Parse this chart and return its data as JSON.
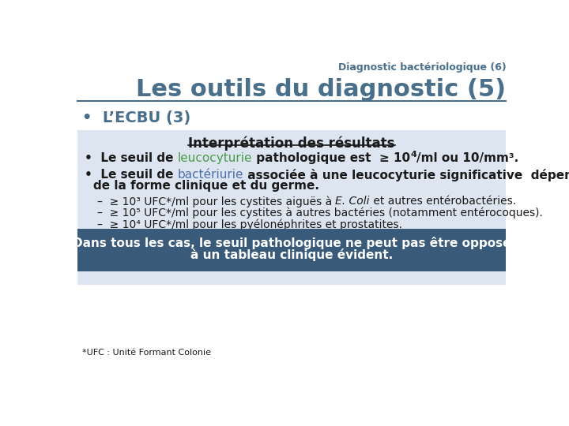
{
  "title_small": "Diagnostic bactériologique (6)",
  "title_large": "Les outils du diagnostic (5)",
  "subtitle": "•  L’ECBU (3)",
  "box_title": "Interprétation des résultats",
  "footer_line1": "Dans tous les cas, le seuil pathologique ne peut pas être opposé",
  "footer_line2": "à un tableau clinique évident.",
  "footnote": "*UFC : Unité Formant Colonie",
  "color_header": "#4a6f8a",
  "color_leucocyturie": "#4a9a4a",
  "color_bacteriurie": "#4a6fb0",
  "color_light_box": "#dde6f0",
  "color_dark_box": "#3a5a7a",
  "color_white": "#ffffff",
  "color_black": "#1a1a1a",
  "color_line": "#4a6f8a",
  "bg_color": "#ffffff"
}
